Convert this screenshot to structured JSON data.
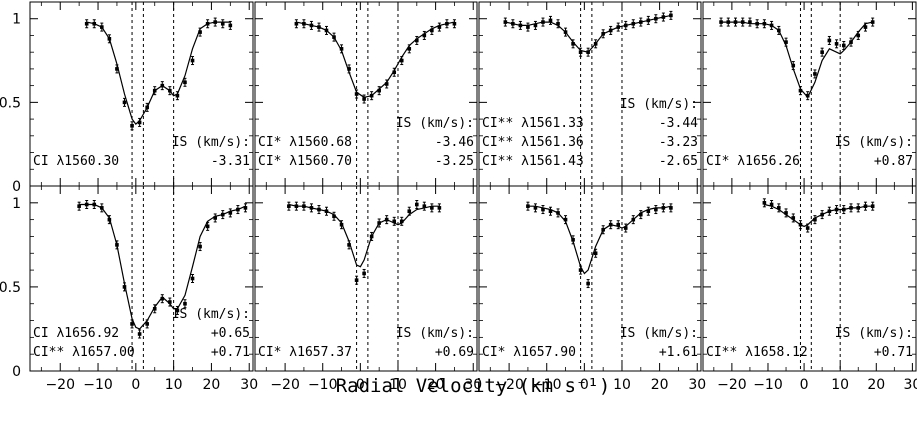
{
  "figure": {
    "xlabel": "Radial   Velocity   (km s⁻¹)"
  },
  "chart_data": [
    {
      "type": "line",
      "xlim": [
        -28,
        31
      ],
      "ylim": [
        0,
        1.1
      ],
      "xticks": [
        "-20",
        "-10",
        "0",
        "10",
        "20",
        "30"
      ],
      "yticks": [
        "0",
        "0.5",
        "1"
      ],
      "ticks_shown": {
        "x": false,
        "y": true
      },
      "components": [
        -1,
        2,
        10
      ],
      "ion_lines": [
        "CI λ1560.30"
      ],
      "is_header": "IS (km/s):",
      "is_values": [
        "-3.31"
      ],
      "data": {
        "x": [
          -13,
          -11,
          -9,
          -7,
          -5,
          -3,
          -1,
          1,
          3,
          5,
          7,
          9,
          11,
          13,
          15,
          17,
          19,
          21,
          23,
          25
        ],
        "y": [
          0.97,
          0.97,
          0.95,
          0.88,
          0.7,
          0.5,
          0.36,
          0.38,
          0.47,
          0.57,
          0.6,
          0.57,
          0.54,
          0.62,
          0.75,
          0.92,
          0.97,
          0.98,
          0.97,
          0.96
        ]
      },
      "model": {
        "x": [
          -13,
          -11,
          -9,
          -7,
          -5,
          -3,
          -1,
          0,
          1,
          3,
          5,
          7,
          9,
          10,
          11,
          13,
          15,
          17,
          19,
          21,
          23,
          25
        ],
        "y": [
          0.98,
          0.97,
          0.95,
          0.88,
          0.73,
          0.55,
          0.4,
          0.37,
          0.39,
          0.47,
          0.57,
          0.6,
          0.57,
          0.54,
          0.55,
          0.66,
          0.82,
          0.94,
          0.97,
          0.98,
          0.98,
          0.98
        ]
      }
    },
    {
      "type": "line",
      "xlim": [
        -28,
        31
      ],
      "ylim": [
        0,
        1.1
      ],
      "xticks": [
        "-20",
        "-10",
        "0",
        "10",
        "20",
        "30"
      ],
      "yticks": [
        "0",
        "0.5",
        "1"
      ],
      "ticks_shown": {
        "x": false,
        "y": false
      },
      "components": [
        -1,
        2,
        10
      ],
      "ion_lines": [
        "CI* λ1560.68",
        "CI* λ1560.70"
      ],
      "is_header": "IS (km/s):",
      "is_values": [
        "-3.46",
        "-3.25"
      ],
      "data": {
        "x": [
          -17,
          -15,
          -13,
          -11,
          -9,
          -7,
          -5,
          -3,
          -1,
          1,
          3,
          5,
          7,
          9,
          11,
          13,
          15,
          17,
          19,
          21,
          23,
          25
        ],
        "y": [
          0.97,
          0.97,
          0.96,
          0.95,
          0.93,
          0.89,
          0.82,
          0.7,
          0.55,
          0.52,
          0.54,
          0.57,
          0.61,
          0.68,
          0.75,
          0.82,
          0.87,
          0.9,
          0.93,
          0.95,
          0.97,
          0.97
        ]
      },
      "model": {
        "x": [
          -17,
          -15,
          -13,
          -11,
          -9,
          -7,
          -5,
          -3,
          -1,
          1,
          3,
          5,
          7,
          9,
          11,
          13,
          15,
          17,
          19,
          21,
          23,
          25
        ],
        "y": [
          0.98,
          0.97,
          0.96,
          0.95,
          0.93,
          0.89,
          0.81,
          0.68,
          0.56,
          0.53,
          0.54,
          0.58,
          0.62,
          0.69,
          0.77,
          0.84,
          0.88,
          0.91,
          0.94,
          0.96,
          0.97,
          0.98
        ]
      }
    },
    {
      "type": "line",
      "xlim": [
        -28,
        31
      ],
      "ylim": [
        0,
        1.1
      ],
      "xticks": [
        "-20",
        "-10",
        "0",
        "10",
        "20",
        "30"
      ],
      "yticks": [
        "0",
        "0.5",
        "1"
      ],
      "ticks_shown": {
        "x": false,
        "y": false
      },
      "components": [
        -1,
        2,
        10
      ],
      "ion_lines": [
        "CI** λ1561.33",
        "CI** λ1561.36",
        "CI** λ1561.43"
      ],
      "is_header": "IS (km/s):",
      "is_values": [
        "-3.44",
        "-3.23",
        "-2.65"
      ],
      "data": {
        "x": [
          -21,
          -19,
          -17,
          -15,
          -13,
          -11,
          -9,
          -7,
          -5,
          -3,
          -1,
          1,
          3,
          5,
          7,
          9,
          11,
          13,
          15,
          17,
          19,
          21,
          23
        ],
        "y": [
          0.98,
          0.97,
          0.96,
          0.95,
          0.96,
          0.98,
          0.99,
          0.97,
          0.92,
          0.85,
          0.8,
          0.8,
          0.85,
          0.91,
          0.93,
          0.95,
          0.96,
          0.97,
          0.98,
          0.99,
          1.0,
          1.01,
          1.02
        ]
      },
      "model": {
        "x": [
          -21,
          -19,
          -17,
          -15,
          -13,
          -11,
          -9,
          -7,
          -5,
          -3,
          -1,
          1,
          3,
          5,
          7,
          9,
          11,
          13,
          15,
          17,
          19,
          21,
          23
        ],
        "y": [
          0.98,
          0.97,
          0.96,
          0.96,
          0.97,
          0.98,
          0.98,
          0.96,
          0.92,
          0.86,
          0.81,
          0.8,
          0.85,
          0.91,
          0.93,
          0.95,
          0.96,
          0.97,
          0.98,
          0.99,
          1.0,
          1.01,
          1.02
        ]
      }
    },
    {
      "type": "line",
      "xlim": [
        -28,
        31
      ],
      "ylim": [
        0,
        1.1
      ],
      "xticks": [
        "-20",
        "-10",
        "0",
        "10",
        "20",
        "30"
      ],
      "yticks": [
        "0",
        "0.5",
        "1"
      ],
      "ticks_shown": {
        "x": false,
        "y": false
      },
      "components": [
        -1,
        2,
        10
      ],
      "ion_lines": [
        "CI* λ1656.26"
      ],
      "is_header": "IS (km/s):",
      "is_values": [
        "+0.87"
      ],
      "data": {
        "x": [
          -23,
          -21,
          -19,
          -17,
          -15,
          -13,
          -11,
          -9,
          -7,
          -5,
          -3,
          -1,
          1,
          3,
          5,
          7,
          9,
          11,
          13,
          15,
          17,
          19
        ],
        "y": [
          0.98,
          0.98,
          0.98,
          0.98,
          0.98,
          0.97,
          0.97,
          0.96,
          0.93,
          0.86,
          0.72,
          0.57,
          0.54,
          0.67,
          0.8,
          0.87,
          0.85,
          0.84,
          0.86,
          0.9,
          0.95,
          0.98
        ]
      },
      "model": {
        "x": [
          -23,
          -21,
          -19,
          -17,
          -15,
          -13,
          -11,
          -9,
          -7,
          -5,
          -3,
          -1,
          1,
          3,
          5,
          7,
          9,
          10,
          11,
          13,
          15,
          17,
          19
        ],
        "y": [
          0.98,
          0.98,
          0.98,
          0.98,
          0.97,
          0.97,
          0.97,
          0.96,
          0.93,
          0.84,
          0.7,
          0.58,
          0.53,
          0.62,
          0.75,
          0.82,
          0.8,
          0.79,
          0.81,
          0.86,
          0.92,
          0.97,
          0.98
        ]
      }
    },
    {
      "type": "line",
      "xlim": [
        -28,
        31
      ],
      "ylim": [
        0,
        1.1
      ],
      "xticks": [
        "-20",
        "-10",
        "0",
        "10",
        "20",
        "30"
      ],
      "yticks": [
        "0",
        "0.5",
        "1"
      ],
      "ticks_shown": {
        "x": true,
        "y": true
      },
      "components": [
        -1,
        2,
        10
      ],
      "ion_lines": [
        "CI    λ1656.92",
        "CI** λ1657.00"
      ],
      "is_header": "IS (km/s):",
      "is_values": [
        "+0.65",
        "+0.71"
      ],
      "data": {
        "x": [
          -15,
          -13,
          -11,
          -9,
          -7,
          -5,
          -3,
          -1,
          1,
          3,
          5,
          7,
          9,
          11,
          13,
          15,
          17,
          19,
          21,
          23,
          25,
          27,
          29
        ],
        "y": [
          0.98,
          0.99,
          0.99,
          0.97,
          0.9,
          0.75,
          0.5,
          0.28,
          0.22,
          0.28,
          0.37,
          0.43,
          0.41,
          0.36,
          0.4,
          0.55,
          0.74,
          0.86,
          0.91,
          0.93,
          0.94,
          0.96,
          0.97
        ]
      },
      "model": {
        "x": [
          -15,
          -13,
          -11,
          -9,
          -7,
          -5,
          -3,
          -1,
          0,
          1,
          3,
          5,
          7,
          9,
          10,
          11,
          13,
          15,
          17,
          19,
          21,
          23,
          25,
          27,
          29
        ],
        "y": [
          0.99,
          0.99,
          0.99,
          0.97,
          0.91,
          0.75,
          0.52,
          0.31,
          0.26,
          0.25,
          0.3,
          0.38,
          0.44,
          0.4,
          0.37,
          0.37,
          0.45,
          0.62,
          0.8,
          0.89,
          0.92,
          0.93,
          0.95,
          0.96,
          0.98
        ]
      }
    },
    {
      "type": "line",
      "xlim": [
        -28,
        31
      ],
      "ylim": [
        0,
        1.1
      ],
      "xticks": [
        "-20",
        "-10",
        "0",
        "10",
        "20",
        "30"
      ],
      "yticks": [
        "0",
        "0.5",
        "1"
      ],
      "ticks_shown": {
        "x": true,
        "y": false
      },
      "components": [
        -1,
        2,
        10
      ],
      "ion_lines": [
        "CI* λ1657.37"
      ],
      "is_header": "IS (km/s):",
      "is_values": [
        "+0.69"
      ],
      "data": {
        "x": [
          -19,
          -17,
          -15,
          -13,
          -11,
          -9,
          -7,
          -5,
          -3,
          -1,
          1,
          3,
          5,
          7,
          9,
          11,
          13,
          15,
          17,
          19,
          21
        ],
        "y": [
          0.98,
          0.98,
          0.98,
          0.97,
          0.96,
          0.95,
          0.92,
          0.87,
          0.75,
          0.54,
          0.58,
          0.8,
          0.88,
          0.9,
          0.89,
          0.89,
          0.95,
          0.99,
          0.98,
          0.97,
          0.97
        ]
      },
      "model": {
        "x": [
          -19,
          -17,
          -15,
          -13,
          -11,
          -9,
          -7,
          -5,
          -3,
          -1,
          0,
          1,
          3,
          5,
          7,
          9,
          10,
          11,
          13,
          15,
          17,
          19,
          21
        ],
        "y": [
          0.99,
          0.98,
          0.98,
          0.97,
          0.96,
          0.95,
          0.93,
          0.88,
          0.77,
          0.63,
          0.62,
          0.66,
          0.8,
          0.88,
          0.9,
          0.88,
          0.87,
          0.88,
          0.93,
          0.96,
          0.97,
          0.98,
          0.98
        ]
      }
    },
    {
      "type": "line",
      "xlim": [
        -28,
        31
      ],
      "ylim": [
        0,
        1.1
      ],
      "xticks": [
        "-20",
        "-10",
        "0",
        "10",
        "20",
        "30"
      ],
      "yticks": [
        "0",
        "0.5",
        "1"
      ],
      "ticks_shown": {
        "x": true,
        "y": false
      },
      "components": [
        -1,
        2,
        10
      ],
      "ion_lines": [
        "CI* λ1657.90"
      ],
      "is_header": "IS (km/s):",
      "is_values": [
        "+1.61"
      ],
      "data": {
        "x": [
          -15,
          -13,
          -11,
          -9,
          -7,
          -5,
          -3,
          -1,
          1,
          3,
          5,
          7,
          9,
          11,
          13,
          15,
          17,
          19,
          21,
          23
        ],
        "y": [
          0.98,
          0.97,
          0.96,
          0.95,
          0.94,
          0.9,
          0.78,
          0.6,
          0.52,
          0.7,
          0.84,
          0.87,
          0.87,
          0.85,
          0.9,
          0.93,
          0.95,
          0.96,
          0.97,
          0.97
        ]
      },
      "model": {
        "x": [
          -15,
          -13,
          -11,
          -9,
          -7,
          -5,
          -3,
          -1,
          0,
          1,
          3,
          5,
          7,
          9,
          10,
          11,
          13,
          15,
          17,
          19,
          21,
          23
        ],
        "y": [
          0.98,
          0.98,
          0.97,
          0.96,
          0.94,
          0.89,
          0.77,
          0.62,
          0.58,
          0.6,
          0.74,
          0.84,
          0.87,
          0.86,
          0.85,
          0.86,
          0.9,
          0.94,
          0.96,
          0.97,
          0.97,
          0.98
        ]
      }
    },
    {
      "type": "line",
      "xlim": [
        -28,
        31
      ],
      "ylim": [
        0,
        1.1
      ],
      "xticks": [
        "-20",
        "-10",
        "0",
        "10",
        "20",
        "30"
      ],
      "yticks": [
        "0",
        "0.5",
        "1"
      ],
      "ticks_shown": {
        "x": true,
        "y": false
      },
      "components": [
        -1,
        2,
        10
      ],
      "ion_lines": [
        "CI** λ1658.12"
      ],
      "is_header": "IS (km/s):",
      "is_values": [
        "+0.71"
      ],
      "data": {
        "x": [
          -11,
          -9,
          -7,
          -5,
          -3,
          -1,
          1,
          3,
          5,
          7,
          9,
          11,
          13,
          15,
          17,
          19
        ],
        "y": [
          1.0,
          0.99,
          0.97,
          0.94,
          0.91,
          0.87,
          0.85,
          0.9,
          0.93,
          0.95,
          0.96,
          0.96,
          0.97,
          0.97,
          0.98,
          0.98
        ]
      },
      "model": {
        "x": [
          -11,
          -9,
          -7,
          -5,
          -3,
          -1,
          0,
          1,
          3,
          5,
          7,
          9,
          11,
          13,
          15,
          17,
          19
        ],
        "y": [
          0.99,
          0.98,
          0.96,
          0.93,
          0.9,
          0.87,
          0.86,
          0.87,
          0.91,
          0.93,
          0.95,
          0.96,
          0.96,
          0.97,
          0.97,
          0.98,
          0.98
        ]
      }
    }
  ]
}
